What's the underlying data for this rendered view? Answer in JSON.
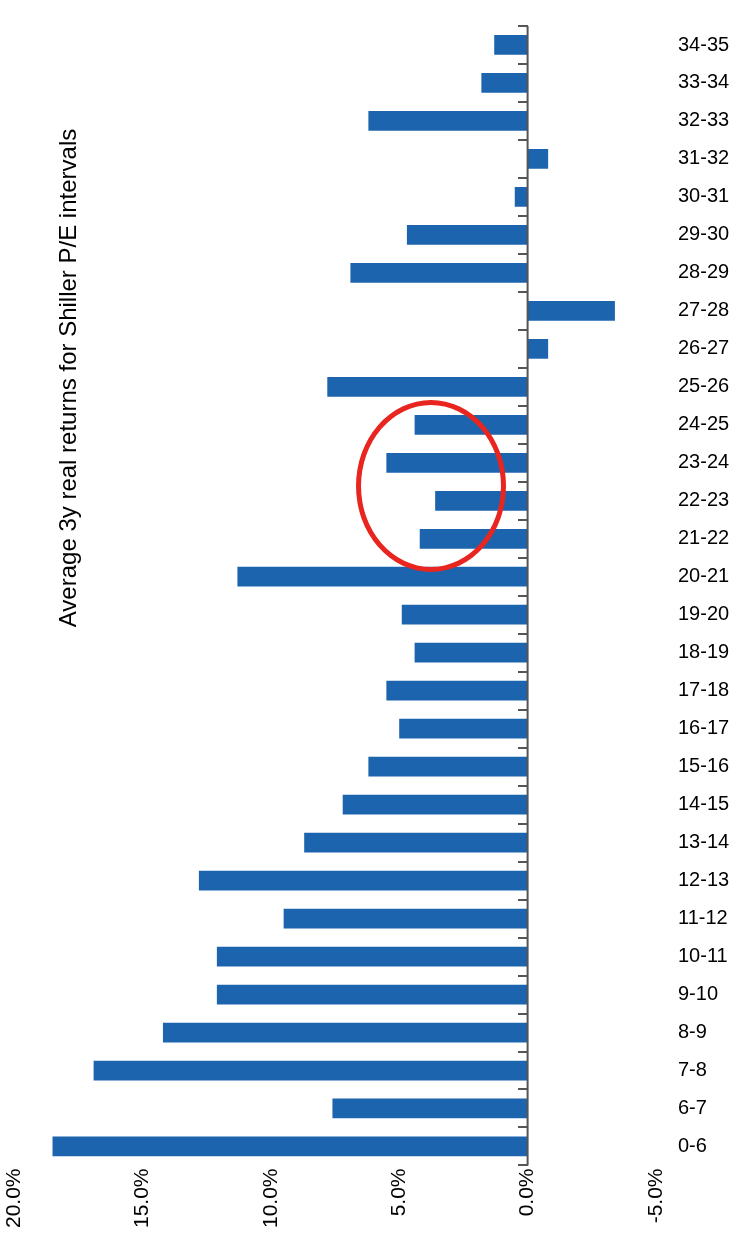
{
  "chart_data": {
    "type": "bar",
    "orientation": "horizontal",
    "title": "Average 3y real returns for Shiller P/E intervals",
    "categories": [
      "34-35",
      "33-34",
      "32-33",
      "31-32",
      "30-31",
      "29-30",
      "28-29",
      "27-28",
      "26-27",
      "25-26",
      "24-25",
      "23-24",
      "22-23",
      "21-22",
      "20-21",
      "19-20",
      "18-19",
      "17-18",
      "16-17",
      "15-16",
      "14-15",
      "13-14",
      "12-13",
      "11-12",
      "10-11",
      "9-10",
      "8-9",
      "7-8",
      "6-7",
      "0-6"
    ],
    "values": [
      1.3,
      1.8,
      6.2,
      -0.8,
      0.5,
      4.7,
      6.9,
      -3.4,
      -0.8,
      7.8,
      4.4,
      5.5,
      3.6,
      4.2,
      11.3,
      4.9,
      4.4,
      5.5,
      5.0,
      6.2,
      7.2,
      8.7,
      12.8,
      9.5,
      12.1,
      12.1,
      14.2,
      16.9,
      7.6,
      18.5
    ],
    "color": "#1d64ae",
    "xlim": [
      20,
      -5
    ],
    "xticks": [
      {
        "value": 20,
        "label": "20.0%"
      },
      {
        "value": 15,
        "label": "15.0%"
      },
      {
        "value": 10,
        "label": "10.0%"
      },
      {
        "value": 5,
        "label": "5.0%"
      },
      {
        "value": 0,
        "label": "0.0%"
      },
      {
        "value": -5,
        "label": "-5.0%"
      }
    ],
    "ref_lines": [
      {
        "axis": "x",
        "value": 0,
        "color": "#555555"
      }
    ],
    "grid": false,
    "legend": false
  }
}
